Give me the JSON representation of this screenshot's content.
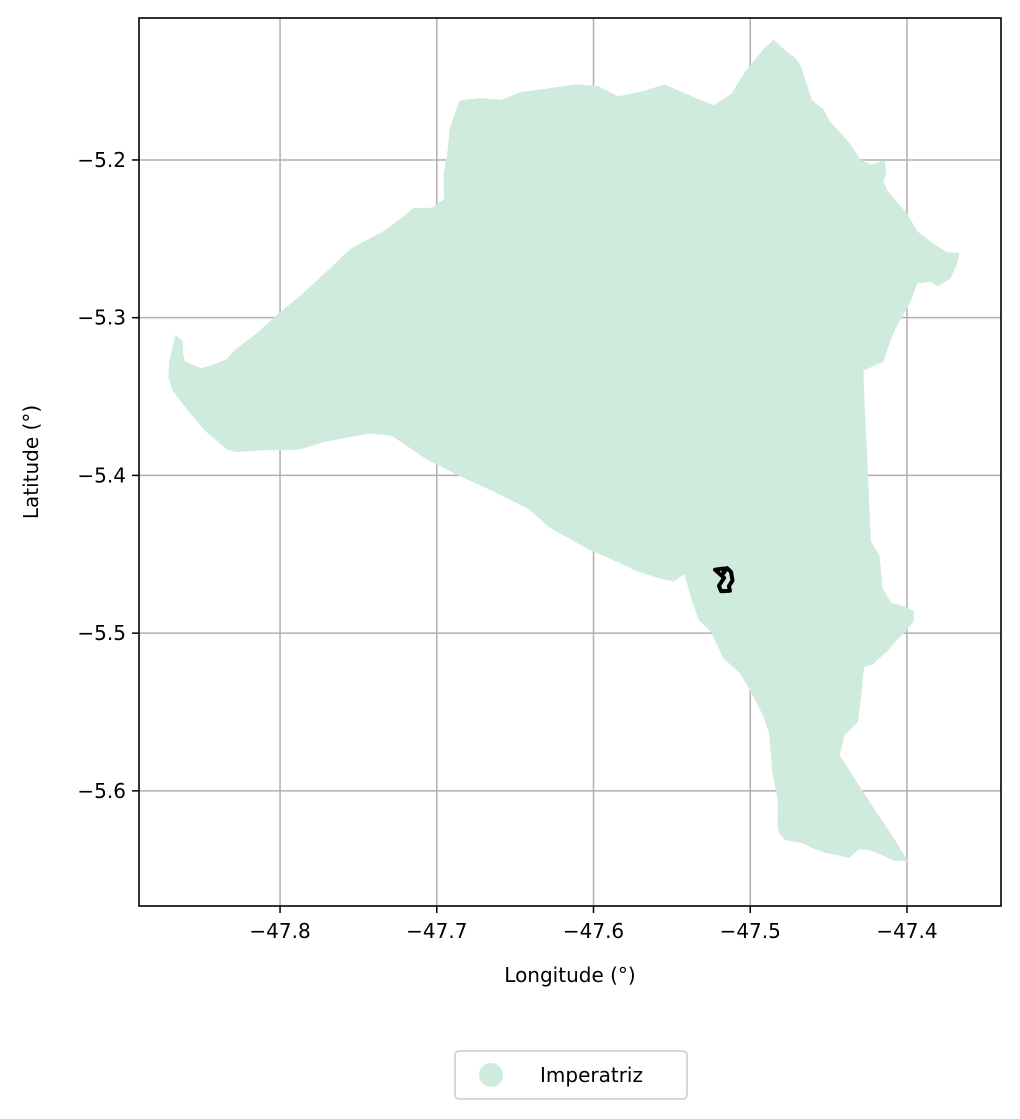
{
  "chart_data": {
    "type": "map",
    "xlabel": "Longitude (°)",
    "ylabel": "Latitude (°)",
    "xlim": [
      -47.89,
      -47.34
    ],
    "ylim": [
      -5.673,
      -5.11
    ],
    "grid": true,
    "xticks": [
      {
        "value": -47.8,
        "label": "−47.8"
      },
      {
        "value": -47.7,
        "label": "−47.7"
      },
      {
        "value": -47.6,
        "label": "−47.6"
      },
      {
        "value": -47.5,
        "label": "−47.5"
      },
      {
        "value": -47.4,
        "label": "−47.4"
      }
    ],
    "yticks": [
      {
        "value": -5.2,
        "label": "−5.2"
      },
      {
        "value": -5.3,
        "label": "−5.3"
      },
      {
        "value": -5.4,
        "label": "−5.4"
      },
      {
        "value": -5.5,
        "label": "−5.5"
      },
      {
        "value": -5.6,
        "label": "−5.6"
      }
    ],
    "legend": {
      "placement": "bottom-center",
      "entries": [
        {
          "label": "Imperatriz",
          "color": "#cfebde"
        }
      ]
    },
    "region": {
      "name": "Imperatriz",
      "fill": "#cfebde",
      "boundary": [
        [
          -47.4767,
          -5.1314
        ],
        [
          -47.4719,
          -5.1347
        ],
        [
          -47.4677,
          -5.1403
        ],
        [
          -47.4646,
          -5.15
        ],
        [
          -47.4606,
          -5.1622
        ],
        [
          -47.4533,
          -5.168
        ],
        [
          -47.4491,
          -5.1756
        ],
        [
          -47.4367,
          -5.1891
        ],
        [
          -47.4297,
          -5.1997
        ],
        [
          -47.4227,
          -5.203
        ],
        [
          -47.4142,
          -5.2002
        ],
        [
          -47.4132,
          -5.2077
        ],
        [
          -47.415,
          -5.2137
        ],
        [
          -47.4124,
          -5.2194
        ],
        [
          -47.4062,
          -5.2268
        ],
        [
          -47.3999,
          -5.2341
        ],
        [
          -47.3933,
          -5.2453
        ],
        [
          -47.3813,
          -5.2543
        ],
        [
          -47.3742,
          -5.2584
        ],
        [
          -47.3665,
          -5.259
        ],
        [
          -47.3684,
          -5.2668
        ],
        [
          -47.3723,
          -5.2754
        ],
        [
          -47.3805,
          -5.28
        ],
        [
          -47.3852,
          -5.2773
        ],
        [
          -47.3935,
          -5.2783
        ],
        [
          -47.3978,
          -5.2901
        ],
        [
          -47.4035,
          -5.3
        ],
        [
          -47.4078,
          -5.308
        ],
        [
          -47.4118,
          -5.3182
        ],
        [
          -47.4149,
          -5.3278
        ],
        [
          -47.4278,
          -5.3336
        ],
        [
          -47.427,
          -5.355
        ],
        [
          -47.425,
          -5.3962
        ],
        [
          -47.423,
          -5.4418
        ],
        [
          -47.4175,
          -5.4509
        ],
        [
          -47.4155,
          -5.4715
        ],
        [
          -47.41,
          -5.4808
        ],
        [
          -47.4009,
          -5.4834
        ],
        [
          -47.3955,
          -5.486
        ],
        [
          -47.3958,
          -5.493
        ],
        [
          -47.406,
          -5.5041
        ],
        [
          -47.4122,
          -5.5111
        ],
        [
          -47.4218,
          -5.5198
        ],
        [
          -47.4274,
          -5.5215
        ],
        [
          -47.4288,
          -5.5366
        ],
        [
          -47.4313,
          -5.5563
        ],
        [
          -47.4397,
          -5.5647
        ],
        [
          -47.443,
          -5.5774
        ],
        [
          -47.4313,
          -5.5954
        ],
        [
          -47.4207,
          -5.6116
        ],
        [
          -47.4097,
          -5.628
        ],
        [
          -47.3992,
          -5.6447
        ],
        [
          -47.4085,
          -5.6442
        ],
        [
          -47.416,
          -5.6407
        ],
        [
          -47.4239,
          -5.6376
        ],
        [
          -47.4309,
          -5.6371
        ],
        [
          -47.4369,
          -5.6426
        ],
        [
          -47.445,
          -5.6406
        ],
        [
          -47.4527,
          -5.6393
        ],
        [
          -47.4609,
          -5.636
        ],
        [
          -47.4672,
          -5.633
        ],
        [
          -47.4778,
          -5.6312
        ],
        [
          -47.4818,
          -5.6264
        ],
        [
          -47.4826,
          -5.6215
        ],
        [
          -47.4824,
          -5.6062
        ],
        [
          -47.486,
          -5.5878
        ],
        [
          -47.4871,
          -5.5746
        ],
        [
          -47.488,
          -5.5635
        ],
        [
          -47.492,
          -5.5521
        ],
        [
          -47.4975,
          -5.5413
        ],
        [
          -47.5061,
          -5.526
        ],
        [
          -47.5171,
          -5.5159
        ],
        [
          -47.5251,
          -5.4992
        ],
        [
          -47.5329,
          -5.4917
        ],
        [
          -47.5371,
          -5.48
        ],
        [
          -47.542,
          -5.4627
        ],
        [
          -47.5486,
          -5.4672
        ],
        [
          -47.5566,
          -5.4657
        ],
        [
          -47.5726,
          -5.4608
        ],
        [
          -47.5843,
          -5.455
        ],
        [
          -47.6023,
          -5.4474
        ],
        [
          -47.6278,
          -5.4333
        ],
        [
          -47.6417,
          -5.4211
        ],
        [
          -47.6635,
          -5.4104
        ],
        [
          -47.6867,
          -5.3998
        ],
        [
          -47.7067,
          -5.3897
        ],
        [
          -47.7287,
          -5.3748
        ],
        [
          -47.7433,
          -5.3734
        ],
        [
          -47.7708,
          -5.3787
        ],
        [
          -47.7883,
          -5.3838
        ],
        [
          -47.8121,
          -5.3841
        ],
        [
          -47.828,
          -5.3852
        ],
        [
          -47.834,
          -5.3836
        ],
        [
          -47.8479,
          -5.3718
        ],
        [
          -47.8587,
          -5.3591
        ],
        [
          -47.8686,
          -5.3462
        ],
        [
          -47.8713,
          -5.337
        ],
        [
          -47.8707,
          -5.328
        ],
        [
          -47.8668,
          -5.311
        ],
        [
          -47.8622,
          -5.3147
        ],
        [
          -47.8618,
          -5.3232
        ],
        [
          -47.8608,
          -5.3277
        ],
        [
          -47.8503,
          -5.332
        ],
        [
          -47.844,
          -5.3302
        ],
        [
          -47.8345,
          -5.3265
        ],
        [
          -47.8283,
          -5.32
        ],
        [
          -47.815,
          -5.31
        ],
        [
          -47.8017,
          -5.2978
        ],
        [
          -47.7867,
          -5.2858
        ],
        [
          -47.77,
          -5.2704
        ],
        [
          -47.755,
          -5.2563
        ],
        [
          -47.7342,
          -5.2452
        ],
        [
          -47.7233,
          -5.2373
        ],
        [
          -47.715,
          -5.2305
        ],
        [
          -47.7033,
          -5.2303
        ],
        [
          -47.6954,
          -5.2249
        ],
        [
          -47.6957,
          -5.2098
        ],
        [
          -47.6933,
          -5.1955
        ],
        [
          -47.6917,
          -5.1798
        ],
        [
          -47.6855,
          -5.1623
        ],
        [
          -47.6725,
          -5.1607
        ],
        [
          -47.6591,
          -5.1619
        ],
        [
          -47.6464,
          -5.1569
        ],
        [
          -47.6293,
          -5.1547
        ],
        [
          -47.6106,
          -5.152
        ],
        [
          -47.5967,
          -5.1533
        ],
        [
          -47.5844,
          -5.1597
        ],
        [
          -47.5683,
          -5.1564
        ],
        [
          -47.5549,
          -5.1521
        ],
        [
          -47.5347,
          -5.1607
        ],
        [
          -47.5234,
          -5.1653
        ],
        [
          -47.512,
          -5.158
        ],
        [
          -47.5033,
          -5.144
        ],
        [
          -47.4918,
          -5.13
        ],
        [
          -47.485,
          -5.1238
        ],
        [
          -47.4767,
          -5.1314
        ]
      ],
      "marker_path": [
        [
          -47.5225,
          -5.4598
        ],
        [
          -47.5168,
          -5.459
        ],
        [
          -47.5171,
          -5.4622
        ],
        [
          -47.5148,
          -5.4588
        ],
        [
          -47.5123,
          -5.4612
        ],
        [
          -47.5113,
          -5.4667
        ],
        [
          -47.5136,
          -5.4702
        ],
        [
          -47.513,
          -5.4731
        ],
        [
          -47.5185,
          -5.4735
        ],
        [
          -47.52,
          -5.47
        ],
        [
          -47.5167,
          -5.465
        ],
        [
          -47.52,
          -5.462
        ],
        [
          -47.5225,
          -5.4598
        ]
      ]
    }
  }
}
